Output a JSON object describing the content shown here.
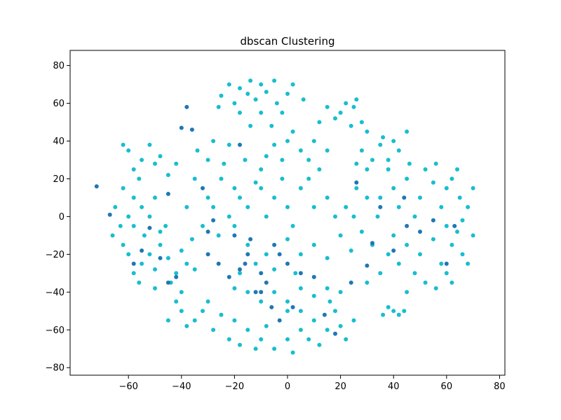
{
  "chart_data": {
    "type": "scatter",
    "title": "dbscan Clustering",
    "xlabel": "",
    "ylabel": "",
    "xlim": [
      -80,
      80
    ],
    "ylim": [
      -80,
      80
    ],
    "x_ticks": [
      -60,
      -40,
      -20,
      0,
      20,
      40,
      60,
      80
    ],
    "y_ticks": [
      -80,
      -60,
      -40,
      -20,
      0,
      20,
      40,
      60,
      80
    ],
    "x_tick_labels": [
      "−60",
      "−40",
      "−20",
      "0",
      "20",
      "40",
      "60",
      "80"
    ],
    "y_tick_labels": [
      "−80",
      "−60",
      "−40",
      "−20",
      "0",
      "20",
      "40",
      "60",
      "80"
    ],
    "grid": false,
    "legend": "none",
    "colors": {
      "cluster": "#17becf",
      "noise": "#1f77b4"
    },
    "series": [
      {
        "role": "cluster",
        "values": [
          [
            -55,
            -25
          ],
          [
            -52,
            -20
          ],
          [
            -50,
            -28
          ],
          [
            -48,
            -15
          ],
          [
            -45,
            -22
          ],
          [
            -42,
            -30
          ],
          [
            -40,
            -18
          ],
          [
            -38,
            -25
          ],
          [
            -54,
            -10
          ],
          [
            -46,
            -5
          ],
          [
            -58,
            -30
          ],
          [
            -60,
            -20
          ],
          [
            -36,
            -12
          ],
          [
            -44,
            -35
          ],
          [
            -50,
            -38
          ],
          [
            -56,
            -35
          ],
          [
            -62,
            -15
          ],
          [
            -40,
            -40
          ],
          [
            -35,
            -28
          ],
          [
            -48,
            -8
          ],
          [
            -55,
            30
          ],
          [
            -50,
            28
          ],
          [
            -45,
            22
          ],
          [
            -58,
            25
          ],
          [
            -60,
            35
          ],
          [
            -52,
            38
          ],
          [
            -48,
            32
          ],
          [
            -42,
            28
          ],
          [
            -62,
            38
          ],
          [
            -56,
            20
          ],
          [
            -62,
            15
          ],
          [
            -58,
            10
          ],
          [
            -65,
            5
          ],
          [
            -60,
            0
          ],
          [
            -55,
            5
          ],
          [
            -50,
            10
          ],
          [
            -52,
            0
          ],
          [
            -66,
            -10
          ],
          [
            -63,
            -5
          ],
          [
            -58,
            -5
          ],
          [
            -30,
            10
          ],
          [
            -25,
            20
          ],
          [
            -20,
            15
          ],
          [
            -28,
            5
          ],
          [
            -22,
            0
          ],
          [
            -32,
            -5
          ],
          [
            -18,
            10
          ],
          [
            -24,
            28
          ],
          [
            -30,
            30
          ],
          [
            -35,
            20
          ],
          [
            -38,
            5
          ],
          [
            -26,
            -10
          ],
          [
            -20,
            -5
          ],
          [
            -15,
            5
          ],
          [
            -12,
            18
          ],
          [
            -10,
            25
          ],
          [
            -16,
            30
          ],
          [
            -34,
            35
          ],
          [
            -28,
            40
          ],
          [
            -22,
            38
          ],
          [
            -20,
            60
          ],
          [
            -15,
            65
          ],
          [
            -10,
            70
          ],
          [
            -18,
            68
          ],
          [
            -12,
            62
          ],
          [
            -8,
            66
          ],
          [
            -22,
            70
          ],
          [
            -5,
            72
          ],
          [
            -25,
            64
          ],
          [
            -14,
            72
          ],
          [
            -18,
            55
          ],
          [
            -10,
            55
          ],
          [
            -4,
            60
          ],
          [
            -26,
            58
          ],
          [
            0,
            65
          ],
          [
            2,
            70
          ],
          [
            -2,
            55
          ],
          [
            6,
            62
          ],
          [
            -6,
            48
          ],
          [
            -14,
            48
          ],
          [
            20,
            55
          ],
          [
            22,
            60
          ],
          [
            25,
            58
          ],
          [
            18,
            52
          ],
          [
            28,
            50
          ],
          [
            15,
            58
          ],
          [
            24,
            48
          ],
          [
            30,
            45
          ],
          [
            12,
            50
          ],
          [
            26,
            62
          ],
          [
            0,
            40
          ],
          [
            5,
            35
          ],
          [
            -5,
            38
          ],
          [
            10,
            40
          ],
          [
            8,
            30
          ],
          [
            -2,
            30
          ],
          [
            15,
            35
          ],
          [
            12,
            25
          ],
          [
            -8,
            32
          ],
          [
            2,
            45
          ],
          [
            -10,
            15
          ],
          [
            -5,
            10
          ],
          [
            0,
            5
          ],
          [
            5,
            15
          ],
          [
            -8,
            0
          ],
          [
            2,
            -5
          ],
          [
            10,
            5
          ],
          [
            -2,
            20
          ],
          [
            8,
            20
          ],
          [
            15,
            10
          ],
          [
            -15,
            -15
          ],
          [
            -8,
            -20
          ],
          [
            0,
            -12
          ],
          [
            5,
            -20
          ],
          [
            -12,
            -25
          ],
          [
            10,
            -15
          ],
          [
            -5,
            -28
          ],
          [
            15,
            -22
          ],
          [
            -18,
            -30
          ],
          [
            3,
            -30
          ],
          [
            40,
            15
          ],
          [
            45,
            20
          ],
          [
            50,
            10
          ],
          [
            42,
            5
          ],
          [
            48,
            0
          ],
          [
            55,
            18
          ],
          [
            38,
            25
          ],
          [
            52,
            25
          ],
          [
            46,
            28
          ],
          [
            35,
            10
          ],
          [
            60,
            15
          ],
          [
            65,
            10
          ],
          [
            68,
            5
          ],
          [
            62,
            20
          ],
          [
            58,
            5
          ],
          [
            70,
            15
          ],
          [
            64,
            25
          ],
          [
            56,
            28
          ],
          [
            66,
            -2
          ],
          [
            60,
            -5
          ],
          [
            40,
            -10
          ],
          [
            45,
            -15
          ],
          [
            50,
            -20
          ],
          [
            42,
            -25
          ],
          [
            48,
            -30
          ],
          [
            55,
            -12
          ],
          [
            38,
            -20
          ],
          [
            52,
            -35
          ],
          [
            35,
            -30
          ],
          [
            58,
            -25
          ],
          [
            62,
            -15
          ],
          [
            66,
            -20
          ],
          [
            68,
            -25
          ],
          [
            60,
            -30
          ],
          [
            70,
            -10
          ],
          [
            64,
            -8
          ],
          [
            56,
            -38
          ],
          [
            45,
            -40
          ],
          [
            30,
            -35
          ],
          [
            62,
            -35
          ],
          [
            25,
            0
          ],
          [
            28,
            -8
          ],
          [
            22,
            5
          ],
          [
            30,
            10
          ],
          [
            32,
            -15
          ],
          [
            20,
            -10
          ],
          [
            26,
            15
          ],
          [
            34,
            0
          ],
          [
            18,
            0
          ],
          [
            24,
            -18
          ],
          [
            -40,
            -50
          ],
          [
            -35,
            -55
          ],
          [
            -30,
            -45
          ],
          [
            -38,
            -58
          ],
          [
            -25,
            -52
          ],
          [
            -42,
            -45
          ],
          [
            -28,
            -60
          ],
          [
            -32,
            -50
          ],
          [
            -20,
            -55
          ],
          [
            -45,
            -55
          ],
          [
            -15,
            -60
          ],
          [
            -10,
            -65
          ],
          [
            -5,
            -70
          ],
          [
            0,
            -65
          ],
          [
            -12,
            -70
          ],
          [
            5,
            -60
          ],
          [
            -8,
            -58
          ],
          [
            2,
            -72
          ],
          [
            -18,
            -68
          ],
          [
            -22,
            -65
          ],
          [
            10,
            -55
          ],
          [
            15,
            -60
          ],
          [
            8,
            -65
          ],
          [
            18,
            -50
          ],
          [
            12,
            -68
          ],
          [
            20,
            -58
          ],
          [
            5,
            -50
          ],
          [
            22,
            -65
          ],
          [
            25,
            -55
          ],
          [
            16,
            -45
          ],
          [
            40,
            -50
          ],
          [
            42,
            -52
          ],
          [
            38,
            -48
          ],
          [
            44,
            -50
          ],
          [
            36,
            -52
          ],
          [
            -5,
            -40
          ],
          [
            0,
            -45
          ],
          [
            5,
            -38
          ],
          [
            -10,
            -45
          ],
          [
            10,
            -42
          ],
          [
            -15,
            -40
          ],
          [
            15,
            -38
          ],
          [
            -20,
            -38
          ],
          [
            20,
            -40
          ],
          [
            0,
            -50
          ],
          [
            28,
            35
          ],
          [
            32,
            30
          ],
          [
            35,
            38
          ],
          [
            38,
            30
          ],
          [
            40,
            40
          ],
          [
            30,
            25
          ],
          [
            42,
            35
          ],
          [
            26,
            28
          ],
          [
            45,
            45
          ],
          [
            36,
            42
          ]
        ]
      },
      {
        "role": "noise",
        "values": [
          [
            -72,
            16
          ],
          [
            -67,
            1
          ],
          [
            -58,
            -25
          ],
          [
            -45,
            -35
          ],
          [
            -40,
            47
          ],
          [
            -36,
            46
          ],
          [
            -45,
            12
          ],
          [
            -30,
            -20
          ],
          [
            -26,
            -25
          ],
          [
            -22,
            -32
          ],
          [
            -18,
            -28
          ],
          [
            -15,
            -20
          ],
          [
            -20,
            -10
          ],
          [
            -10,
            -30
          ],
          [
            -12,
            -40
          ],
          [
            -5,
            -15
          ],
          [
            0,
            -25
          ],
          [
            5,
            -30
          ],
          [
            -8,
            -35
          ],
          [
            -14,
            -12
          ],
          [
            -3,
            -20
          ],
          [
            -16,
            -25
          ],
          [
            -42,
            -32
          ],
          [
            -55,
            -18
          ],
          [
            -32,
            15
          ],
          [
            -28,
            -2
          ],
          [
            -18,
            38
          ],
          [
            -38,
            58
          ],
          [
            -10,
            -40
          ],
          [
            2,
            -48
          ],
          [
            14,
            -52
          ],
          [
            18,
            -62
          ],
          [
            24,
            -35
          ],
          [
            32,
            -14
          ],
          [
            40,
            -18
          ],
          [
            45,
            -5
          ],
          [
            50,
            -8
          ],
          [
            55,
            -2
          ],
          [
            63,
            -5
          ],
          [
            60,
            -25
          ],
          [
            44,
            10
          ],
          [
            35,
            5
          ],
          [
            26,
            18
          ],
          [
            30,
            -26
          ],
          [
            10,
            -32
          ],
          [
            -6,
            -48
          ],
          [
            -3,
            -55
          ],
          [
            -30,
            -8
          ],
          [
            -48,
            -22
          ],
          [
            -52,
            -6
          ]
        ]
      }
    ]
  }
}
